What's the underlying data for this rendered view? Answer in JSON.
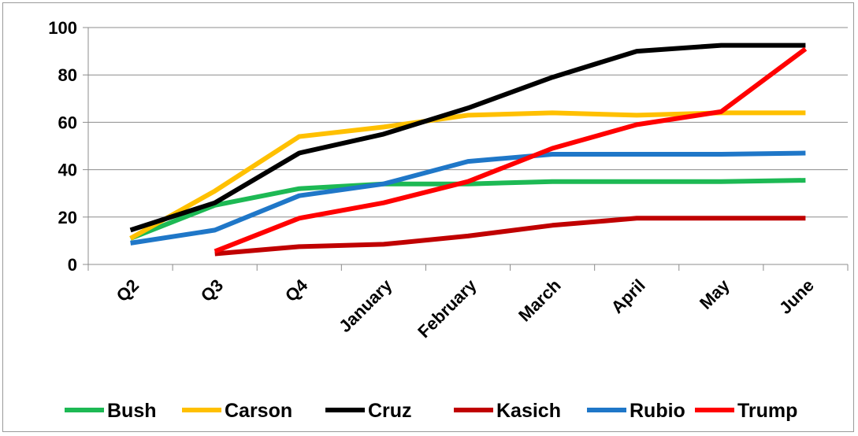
{
  "chart_data": {
    "type": "line",
    "title": "",
    "xlabel": "",
    "ylabel": "",
    "categories": [
      "Q2",
      "Q3",
      "Q4",
      "January",
      "February",
      "March",
      "April",
      "May",
      "June"
    ],
    "ylim": [
      0,
      100
    ],
    "yticks": [
      "0",
      "20",
      "40",
      "60",
      "80",
      "100"
    ],
    "grid": true,
    "legend_position": "bottom",
    "series": [
      {
        "name": "Bush",
        "color": "#1db954",
        "values": [
          11,
          25,
          32,
          34,
          34,
          35,
          35,
          35,
          35.5
        ]
      },
      {
        "name": "Carson",
        "color": "#ffc000",
        "values": [
          11,
          31,
          54,
          58,
          63,
          64,
          63,
          64,
          64
        ]
      },
      {
        "name": "Cruz",
        "color": "#000000",
        "values": [
          14.5,
          26,
          47,
          55,
          66,
          79,
          90,
          92.5,
          92.5
        ]
      },
      {
        "name": "Kasich",
        "color": "#c00000",
        "values": [
          null,
          4.5,
          7.5,
          8.5,
          12,
          16.5,
          19.5,
          19.5,
          19.5
        ]
      },
      {
        "name": "Rubio",
        "color": "#1f77c8",
        "values": [
          9,
          14.5,
          29,
          34,
          43.5,
          46.5,
          46.5,
          46.5,
          47
        ]
      },
      {
        "name": "Trump",
        "color": "#ff0000",
        "values": [
          null,
          5.5,
          19.5,
          26,
          35,
          49,
          59,
          64.5,
          91
        ]
      }
    ]
  }
}
